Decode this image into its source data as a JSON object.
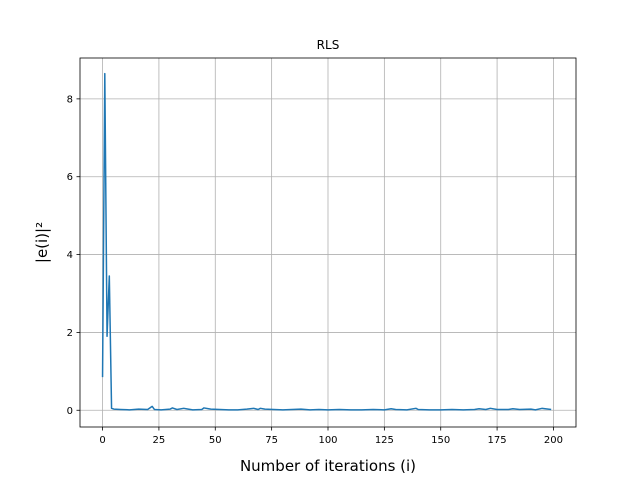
{
  "chart_data": {
    "type": "line",
    "title": "RLS",
    "xlabel": "Number of iterations (i)",
    "ylabel": "|e(i)|²",
    "xlim": [
      -10,
      210
    ],
    "ylim": [
      -0.43,
      9.05
    ],
    "xticks": [
      0,
      25,
      50,
      75,
      100,
      125,
      150,
      175,
      200
    ],
    "xtick_labels": [
      "0",
      "25",
      "50",
      "75",
      "100",
      "125",
      "150",
      "175",
      "200"
    ],
    "yticks": [
      0,
      2,
      4,
      6,
      8
    ],
    "ytick_labels": [
      "0",
      "2",
      "4",
      "6",
      "8"
    ],
    "grid": true,
    "legend": "none",
    "series_color": "#1f77b4",
    "series": [
      {
        "x": [
          0,
          1,
          2,
          3,
          4,
          5,
          8,
          12,
          16,
          20,
          22,
          23,
          26,
          30,
          31,
          33,
          36,
          38,
          40,
          44,
          45,
          48,
          52,
          56,
          60,
          64,
          67,
          69,
          70,
          72,
          76,
          80,
          84,
          88,
          92,
          96,
          100,
          105,
          110,
          115,
          120,
          125,
          128,
          130,
          135,
          139,
          140,
          145,
          150,
          155,
          160,
          165,
          167,
          170,
          172,
          175,
          180,
          182,
          185,
          190,
          192,
          195,
          199
        ],
        "y": [
          0.85,
          8.65,
          1.9,
          3.45,
          0.05,
          0.03,
          0.02,
          0.01,
          0.03,
          0.02,
          0.1,
          0.02,
          0.01,
          0.03,
          0.06,
          0.02,
          0.05,
          0.03,
          0.01,
          0.02,
          0.06,
          0.03,
          0.02,
          0.01,
          0.01,
          0.03,
          0.05,
          0.02,
          0.05,
          0.03,
          0.02,
          0.01,
          0.02,
          0.03,
          0.01,
          0.02,
          0.01,
          0.02,
          0.01,
          0.01,
          0.02,
          0.01,
          0.04,
          0.02,
          0.01,
          0.05,
          0.02,
          0.01,
          0.01,
          0.02,
          0.01,
          0.02,
          0.04,
          0.02,
          0.05,
          0.02,
          0.02,
          0.04,
          0.02,
          0.03,
          0.01,
          0.05,
          0.02
        ]
      }
    ]
  }
}
